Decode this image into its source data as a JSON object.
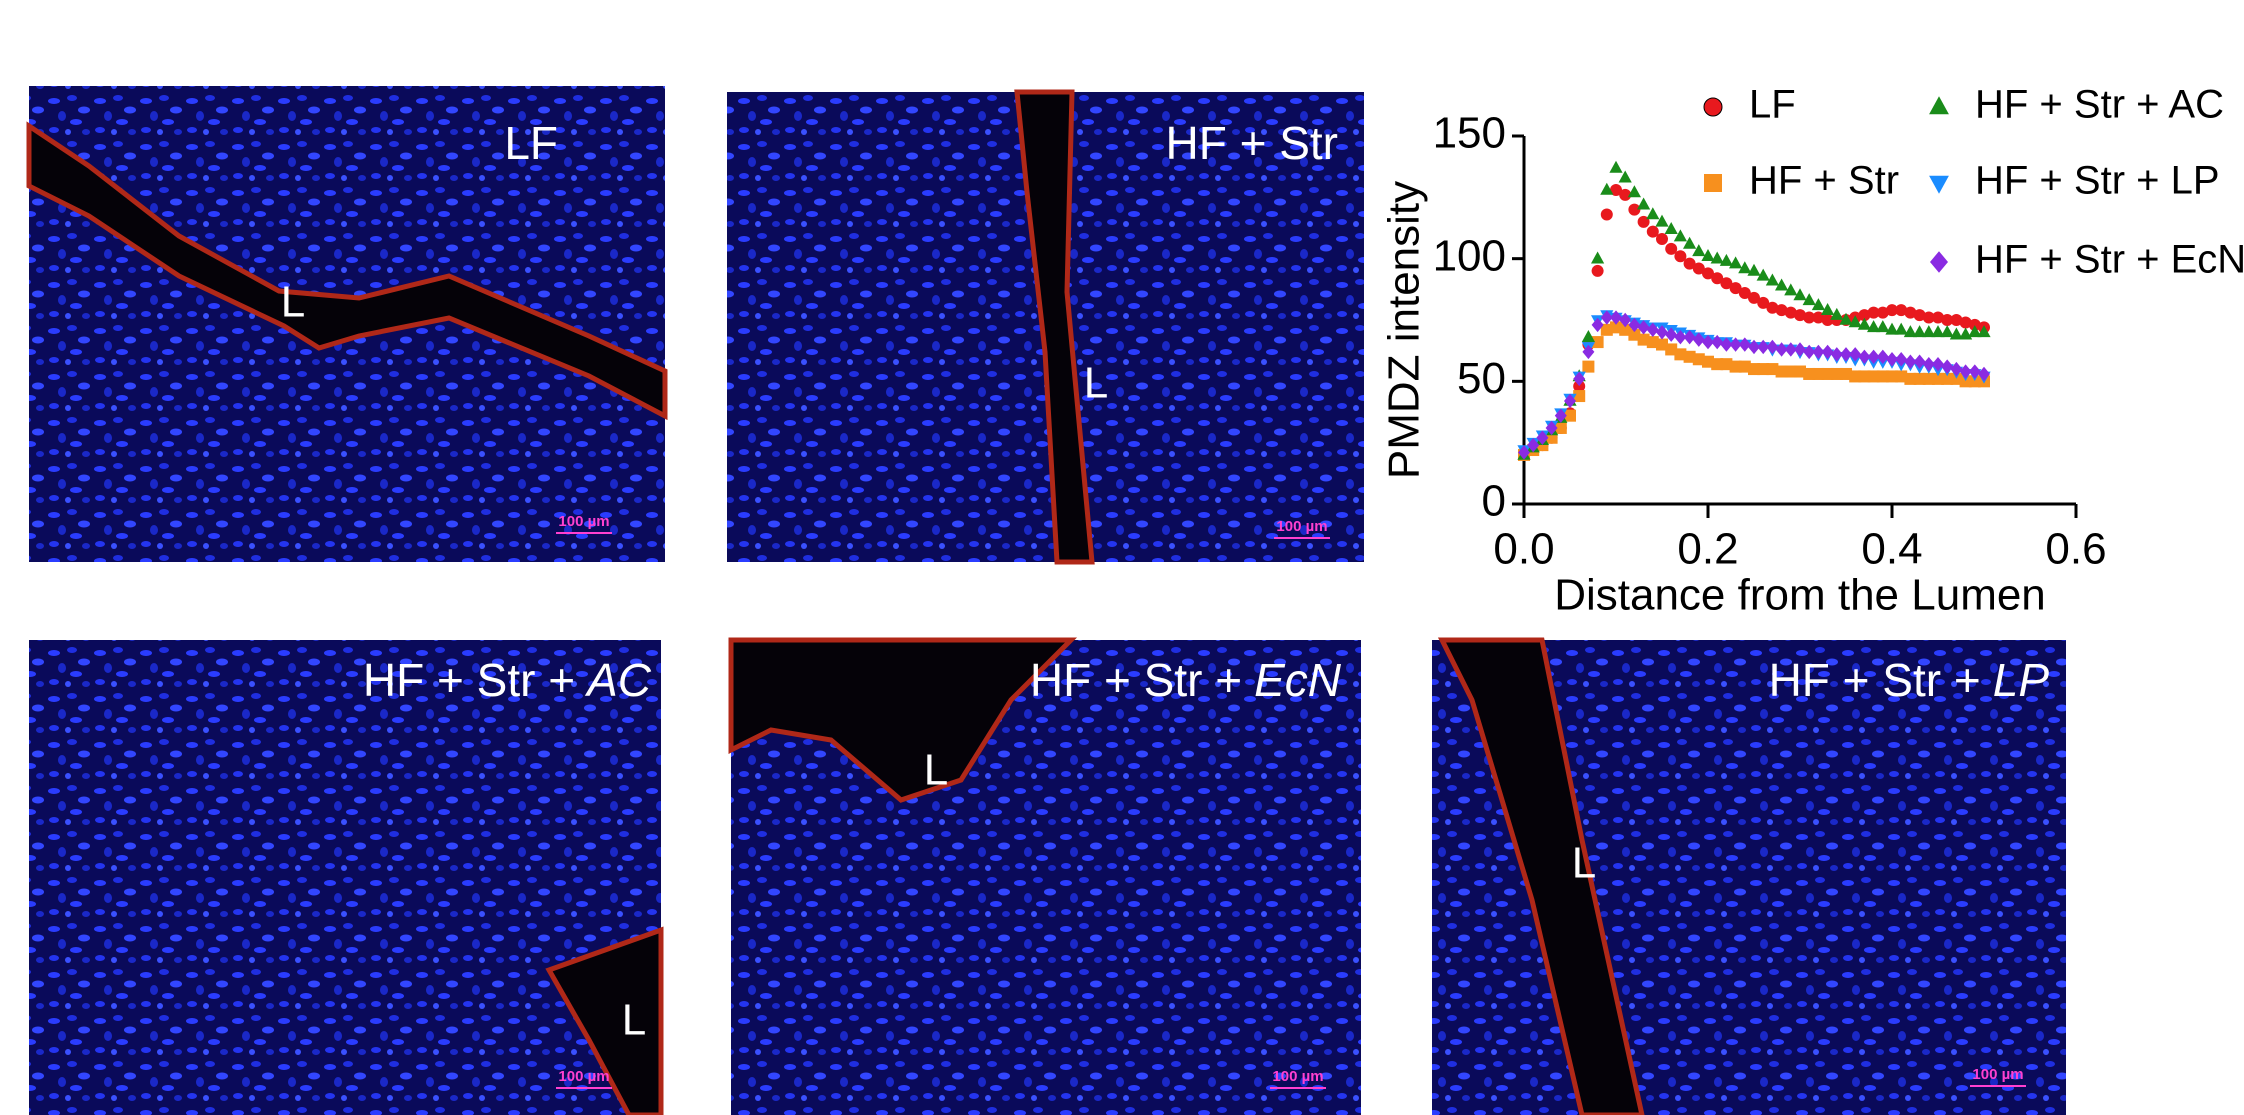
{
  "panels": [
    {
      "title": "LF",
      "lumen": "L",
      "scale": "100 µm"
    },
    {
      "title": "HF + Str",
      "lumen": "L",
      "scale": "100 µm"
    },
    {
      "title": "HF + Str +",
      "title_italic": "AC",
      "lumen": "L",
      "scale": "100 µm"
    },
    {
      "title": "HF + Str +",
      "title_italic": "EcN",
      "lumen": "L",
      "scale": "100 µm"
    },
    {
      "title": "HF + Str +",
      "title_italic": "LP",
      "lumen": "L",
      "scale": "100 µm"
    }
  ],
  "chart_data": {
    "type": "scatter",
    "xlabel": "Distance from the Lumen",
    "ylabel": "PMDZ intensity",
    "x": [
      0,
      0.01,
      0.02,
      0.03,
      0.04,
      0.05,
      0.06,
      0.07,
      0.08,
      0.09,
      0.1,
      0.11,
      0.12,
      0.13,
      0.14,
      0.15,
      0.16,
      0.17,
      0.18,
      0.19,
      0.2,
      0.21,
      0.22,
      0.23,
      0.24,
      0.25,
      0.26,
      0.27,
      0.28,
      0.29,
      0.3,
      0.31,
      0.32,
      0.33,
      0.34,
      0.35,
      0.36,
      0.37,
      0.38,
      0.39,
      0.4,
      0.41,
      0.42,
      0.43,
      0.44,
      0.45,
      0.46,
      0.47,
      0.48,
      0.49,
      0.5
    ],
    "series": [
      {
        "name": "LF",
        "color": "#e8191e",
        "marker": "circle",
        "values": [
          20,
          22,
          24,
          27,
          31,
          37,
          48,
          65,
          95,
          118,
          128,
          126,
          120,
          115,
          111,
          108,
          104,
          101,
          98,
          96,
          94,
          92,
          90,
          88,
          86,
          84,
          82,
          80,
          79,
          78,
          77,
          76,
          76,
          75,
          75,
          75,
          76,
          77,
          78,
          78,
          79,
          79,
          78,
          77,
          76,
          76,
          75,
          75,
          74,
          73,
          72
        ]
      },
      {
        "name": "HF + Str",
        "color": "#f7901e",
        "marker": "square",
        "values": [
          20,
          22,
          24,
          27,
          31,
          36,
          44,
          56,
          66,
          71,
          72,
          71,
          69,
          67,
          66,
          65,
          63,
          61,
          60,
          59,
          58,
          57,
          57,
          56,
          56,
          55,
          55,
          55,
          54,
          54,
          54,
          53,
          53,
          53,
          53,
          53,
          52,
          52,
          52,
          52,
          52,
          52,
          51,
          51,
          51,
          51,
          51,
          51,
          50,
          50,
          50
        ]
      },
      {
        "name": "HF + Str + AC",
        "color": "#1a8c1a",
        "marker": "triangle-up",
        "values": [
          20,
          23,
          26,
          30,
          35,
          42,
          52,
          68,
          100,
          128,
          137,
          133,
          127,
          122,
          118,
          115,
          112,
          109,
          106,
          103,
          101,
          100,
          99,
          98,
          96,
          95,
          93,
          91,
          89,
          87,
          85,
          83,
          81,
          79,
          77,
          75,
          74,
          73,
          72,
          72,
          71,
          71,
          70,
          70,
          70,
          70,
          70,
          69,
          69,
          70,
          70
        ]
      },
      {
        "name": "HF + Str + LP",
        "color": "#1a8cff",
        "marker": "triangle-down",
        "values": [
          22,
          25,
          28,
          32,
          37,
          43,
          52,
          64,
          75,
          77,
          76,
          75,
          74,
          73,
          72,
          72,
          71,
          70,
          69,
          68,
          67,
          66,
          66,
          65,
          65,
          64,
          64,
          63,
          63,
          63,
          62,
          62,
          61,
          61,
          60,
          60,
          59,
          59,
          58,
          58,
          58,
          57,
          57,
          56,
          56,
          55,
          55,
          54,
          53,
          53,
          52
        ]
      },
      {
        "name": "HF + Str + EcN",
        "color": "#8a2be2",
        "marker": "diamond",
        "values": [
          21,
          24,
          27,
          31,
          36,
          42,
          51,
          62,
          73,
          76,
          76,
          75,
          73,
          72,
          71,
          70,
          69,
          68,
          68,
          67,
          66,
          66,
          65,
          65,
          65,
          64,
          64,
          64,
          63,
          63,
          63,
          62,
          62,
          62,
          61,
          61,
          61,
          60,
          60,
          60,
          59,
          59,
          58,
          58,
          57,
          57,
          56,
          55,
          54,
          54,
          53
        ]
      }
    ],
    "xlim": [
      0,
      0.6
    ],
    "xticks": [
      {
        "value": 0,
        "label": "0.0"
      },
      0.2,
      0.4,
      0.6
    ],
    "ylim": [
      0,
      150
    ],
    "yticks": [
      0,
      50,
      100,
      150
    ]
  }
}
